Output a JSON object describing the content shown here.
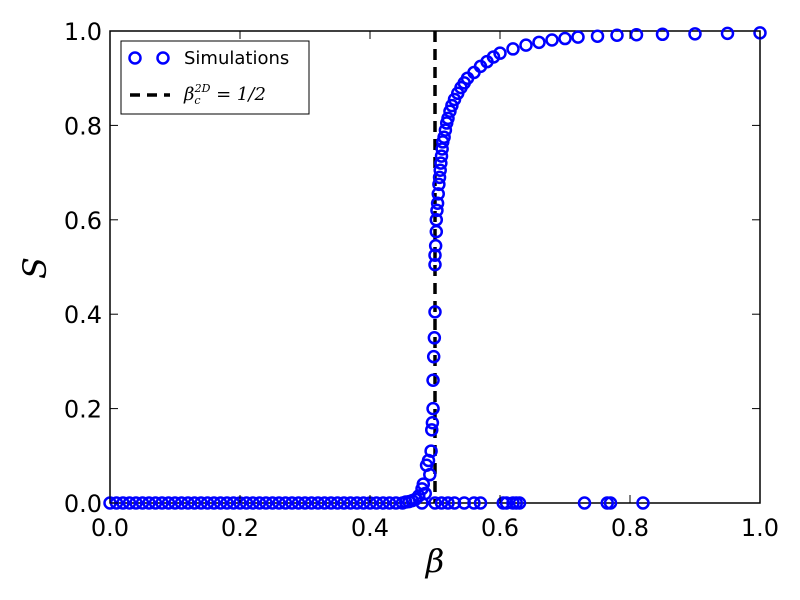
{
  "chart_data": {
    "type": "scatter",
    "xlabel": "β",
    "ylabel": "S",
    "xlim": [
      0.0,
      1.0
    ],
    "ylim": [
      0.0,
      1.0
    ],
    "x_ticks": [
      "0.0",
      "0.2",
      "0.4",
      "0.6",
      "0.8",
      "1.0"
    ],
    "y_ticks": [
      "0.0",
      "0.2",
      "0.4",
      "0.6",
      "0.8",
      "1.0"
    ],
    "grid": false,
    "legend_position": "top-left",
    "colors": {
      "simulations": "#0000ff",
      "critical_line": "#000000"
    },
    "series": [
      {
        "name": "Simulations",
        "style": "open-circle",
        "points": [
          [
            0.0,
            0.0
          ],
          [
            0.01,
            0.0
          ],
          [
            0.02,
            0.0
          ],
          [
            0.03,
            0.0
          ],
          [
            0.04,
            0.0
          ],
          [
            0.05,
            0.0
          ],
          [
            0.06,
            0.0
          ],
          [
            0.07,
            0.0
          ],
          [
            0.08,
            0.0
          ],
          [
            0.09,
            0.0
          ],
          [
            0.1,
            0.0
          ],
          [
            0.11,
            0.0
          ],
          [
            0.12,
            0.0
          ],
          [
            0.13,
            0.0
          ],
          [
            0.14,
            0.0
          ],
          [
            0.15,
            0.0
          ],
          [
            0.16,
            0.0
          ],
          [
            0.17,
            0.0
          ],
          [
            0.18,
            0.0
          ],
          [
            0.19,
            0.0
          ],
          [
            0.2,
            0.0
          ],
          [
            0.21,
            0.0
          ],
          [
            0.22,
            0.0
          ],
          [
            0.23,
            0.0
          ],
          [
            0.24,
            0.0
          ],
          [
            0.25,
            0.0
          ],
          [
            0.26,
            0.0
          ],
          [
            0.27,
            0.0
          ],
          [
            0.28,
            0.0
          ],
          [
            0.29,
            0.0
          ],
          [
            0.3,
            0.0
          ],
          [
            0.31,
            0.0
          ],
          [
            0.32,
            0.0
          ],
          [
            0.33,
            0.0
          ],
          [
            0.34,
            0.0
          ],
          [
            0.35,
            0.0
          ],
          [
            0.36,
            0.0
          ],
          [
            0.37,
            0.0
          ],
          [
            0.38,
            0.0
          ],
          [
            0.39,
            0.0
          ],
          [
            0.4,
            0.0
          ],
          [
            0.41,
            0.0
          ],
          [
            0.42,
            0.0
          ],
          [
            0.43,
            0.0
          ],
          [
            0.44,
            0.0
          ],
          [
            0.45,
            0.0
          ],
          [
            0.455,
            0.002
          ],
          [
            0.46,
            0.003
          ],
          [
            0.465,
            0.005
          ],
          [
            0.47,
            0.008
          ],
          [
            0.475,
            0.015
          ],
          [
            0.48,
            0.03
          ],
          [
            0.482,
            0.04
          ],
          [
            0.485,
            0.02
          ],
          [
            0.487,
            0.08
          ],
          [
            0.49,
            0.09
          ],
          [
            0.492,
            0.06
          ],
          [
            0.494,
            0.11
          ],
          [
            0.495,
            0.155
          ],
          [
            0.496,
            0.17
          ],
          [
            0.497,
            0.2
          ],
          [
            0.497,
            0.26
          ],
          [
            0.498,
            0.31
          ],
          [
            0.499,
            0.35
          ],
          [
            0.5,
            0.405
          ],
          [
            0.5,
            0.505
          ],
          [
            0.5,
            0.525
          ],
          [
            0.501,
            0.545
          ],
          [
            0.502,
            0.575
          ],
          [
            0.502,
            0.6
          ],
          [
            0.503,
            0.62
          ],
          [
            0.504,
            0.635
          ],
          [
            0.505,
            0.655
          ],
          [
            0.506,
            0.675
          ],
          [
            0.507,
            0.69
          ],
          [
            0.508,
            0.705
          ],
          [
            0.509,
            0.72
          ],
          [
            0.51,
            0.735
          ],
          [
            0.511,
            0.75
          ],
          [
            0.512,
            0.765
          ],
          [
            0.514,
            0.775
          ],
          [
            0.516,
            0.79
          ],
          [
            0.518,
            0.805
          ],
          [
            0.52,
            0.815
          ],
          [
            0.523,
            0.83
          ],
          [
            0.526,
            0.842
          ],
          [
            0.53,
            0.855
          ],
          [
            0.535,
            0.868
          ],
          [
            0.54,
            0.88
          ],
          [
            0.545,
            0.89
          ],
          [
            0.55,
            0.9
          ],
          [
            0.56,
            0.912
          ],
          [
            0.57,
            0.925
          ],
          [
            0.58,
            0.935
          ],
          [
            0.59,
            0.945
          ],
          [
            0.6,
            0.953
          ],
          [
            0.62,
            0.962
          ],
          [
            0.64,
            0.97
          ],
          [
            0.66,
            0.976
          ],
          [
            0.68,
            0.981
          ],
          [
            0.7,
            0.984
          ],
          [
            0.72,
            0.987
          ],
          [
            0.75,
            0.989
          ],
          [
            0.78,
            0.991
          ],
          [
            0.81,
            0.992
          ],
          [
            0.85,
            0.993
          ],
          [
            0.9,
            0.994
          ],
          [
            0.95,
            0.995
          ],
          [
            1.0,
            0.996
          ],
          [
            0.48,
            0.0
          ],
          [
            0.5,
            0.0
          ],
          [
            0.51,
            0.0
          ],
          [
            0.52,
            0.0
          ],
          [
            0.53,
            0.0
          ],
          [
            0.545,
            0.0
          ],
          [
            0.56,
            0.0
          ],
          [
            0.57,
            0.0
          ],
          [
            0.605,
            0.0
          ],
          [
            0.61,
            0.0
          ],
          [
            0.62,
            0.0
          ],
          [
            0.625,
            0.0
          ],
          [
            0.63,
            0.0
          ],
          [
            0.73,
            0.0
          ],
          [
            0.765,
            0.0
          ],
          [
            0.77,
            0.0
          ],
          [
            0.82,
            0.0
          ]
        ]
      },
      {
        "name": "β_c^{2D} = 1/2",
        "style": "dashed-vertical-line",
        "x": 0.5
      }
    ],
    "legend": {
      "simulations_label": "Simulations",
      "critical_label_base": "β",
      "critical_label_sub": "c",
      "critical_label_sup": "2D",
      "critical_label_rest": " = 1/2"
    }
  }
}
